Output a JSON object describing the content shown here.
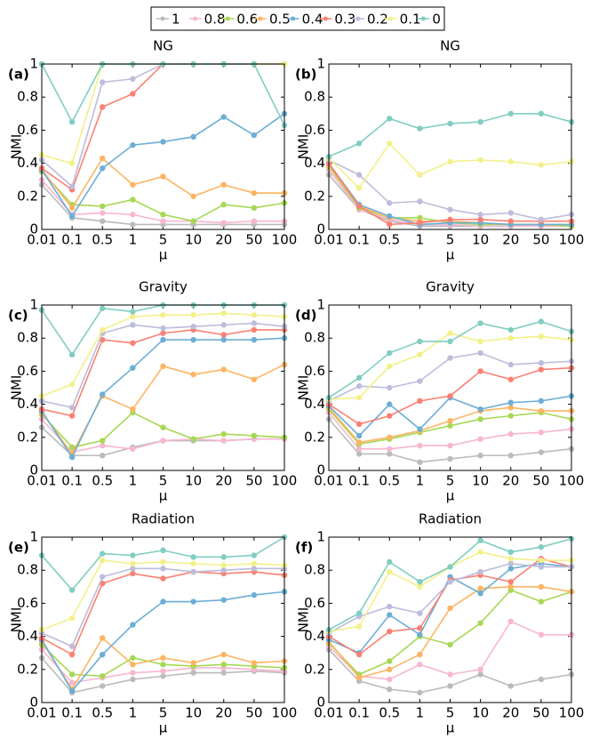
{
  "chart_data": [
    {
      "type": "line",
      "title": "NG",
      "panel_label": "(a)",
      "x_label": "μ",
      "y_label": "NMI",
      "categories": [
        "0.01",
        "0.1",
        "0.5",
        "1",
        "5",
        "10",
        "20",
        "50",
        "100"
      ],
      "ylim": [
        0,
        1
      ],
      "yticks": [
        0,
        0.2,
        0.4,
        0.6,
        0.8,
        1
      ],
      "series": [
        {
          "name": "1",
          "color": "#bbbbbb",
          "values": [
            0.27,
            0.07,
            0.05,
            0.03,
            0.03,
            0.03,
            0.03,
            0.03,
            0.03
          ]
        },
        {
          "name": "0.8",
          "color": "#f7b6d2",
          "values": [
            0.3,
            0.09,
            0.1,
            0.09,
            0.05,
            0.05,
            0.04,
            0.05,
            0.05
          ]
        },
        {
          "name": "0.6",
          "color": "#a6d854",
          "values": [
            0.35,
            0.15,
            0.14,
            0.18,
            0.09,
            0.05,
            0.15,
            0.13,
            0.16
          ]
        },
        {
          "name": "0.5",
          "color": "#fdb462",
          "values": [
            0.36,
            0.13,
            0.43,
            0.27,
            0.32,
            0.2,
            0.27,
            0.22,
            0.22
          ]
        },
        {
          "name": "0.4",
          "color": "#6baed6",
          "values": [
            0.36,
            0.08,
            0.37,
            0.51,
            0.53,
            0.56,
            0.68,
            0.57,
            0.7
          ]
        },
        {
          "name": "0.3",
          "color": "#fb8072",
          "values": [
            0.37,
            0.24,
            0.74,
            0.82,
            1,
            1,
            1,
            1,
            1
          ]
        },
        {
          "name": "0.2",
          "color": "#bcbddc",
          "values": [
            0.42,
            0.26,
            0.89,
            0.91,
            1,
            1,
            1,
            1,
            1
          ]
        },
        {
          "name": "0.1",
          "color": "#f3f08a",
          "values": [
            0.45,
            0.4,
            1,
            1,
            1,
            1,
            1,
            1,
            1
          ]
        },
        {
          "name": "0",
          "color": "#80cdc1",
          "values": [
            1,
            0.65,
            1,
            1,
            1,
            1,
            1,
            1,
            0.63
          ]
        }
      ]
    },
    {
      "type": "line",
      "title": "NG",
      "panel_label": "(b)",
      "x_label": "μ",
      "y_label": "NMI",
      "categories": [
        "0.01",
        "0.1",
        "0.5",
        "1",
        "5",
        "10",
        "20",
        "50",
        "100"
      ],
      "ylim": [
        0,
        1
      ],
      "yticks": [
        0,
        0.2,
        0.4,
        0.6,
        0.8,
        1
      ],
      "series": [
        {
          "name": "1",
          "color": "#bbbbbb",
          "values": [
            0.33,
            0.12,
            0.05,
            0.02,
            0.02,
            0.02,
            0.02,
            0.02,
            0.02
          ]
        },
        {
          "name": "0.8",
          "color": "#f7b6d2",
          "values": [
            0.36,
            0.12,
            0.06,
            0.03,
            0.03,
            0.02,
            0.02,
            0.02,
            0.02
          ]
        },
        {
          "name": "0.6",
          "color": "#a6d854",
          "values": [
            0.38,
            0.13,
            0.07,
            0.07,
            0.04,
            0.03,
            0.03,
            0.03,
            0.02
          ]
        },
        {
          "name": "0.5",
          "color": "#fdb462",
          "values": [
            0.39,
            0.14,
            0.07,
            0.05,
            0.05,
            0.04,
            0.03,
            0.03,
            0.03
          ]
        },
        {
          "name": "0.4",
          "color": "#6baed6",
          "values": [
            0.4,
            0.15,
            0.08,
            0.03,
            0.04,
            0.04,
            0.03,
            0.03,
            0.03
          ]
        },
        {
          "name": "0.3",
          "color": "#fb8072",
          "values": [
            0.4,
            0.14,
            0.03,
            0.04,
            0.06,
            0.06,
            0.05,
            0.05,
            0.05
          ]
        },
        {
          "name": "0.2",
          "color": "#bcbddc",
          "values": [
            0.42,
            0.33,
            0.16,
            0.17,
            0.12,
            0.09,
            0.1,
            0.06,
            0.09
          ]
        },
        {
          "name": "0.1",
          "color": "#f3f08a",
          "values": [
            0.43,
            0.25,
            0.52,
            0.33,
            0.41,
            0.42,
            0.41,
            0.39,
            0.41
          ]
        },
        {
          "name": "0",
          "color": "#80cdc1",
          "values": [
            0.44,
            0.52,
            0.67,
            0.61,
            0.64,
            0.65,
            0.7,
            0.7,
            0.65
          ]
        }
      ]
    },
    {
      "type": "line",
      "title": "Gravity",
      "panel_label": "(c)",
      "x_label": "μ",
      "y_label": "NMI",
      "categories": [
        "0.01",
        "0.1",
        "0.5",
        "1",
        "5",
        "10",
        "20",
        "50",
        "100"
      ],
      "ylim": [
        0,
        1
      ],
      "yticks": [
        0,
        0.2,
        0.4,
        0.6,
        0.8,
        1
      ],
      "series": [
        {
          "name": "1",
          "color": "#bbbbbb",
          "values": [
            0.26,
            0.09,
            0.09,
            0.14,
            0.18,
            0.18,
            0.18,
            0.19,
            0.19
          ]
        },
        {
          "name": "0.8",
          "color": "#f7b6d2",
          "values": [
            0.31,
            0.11,
            0.15,
            0.13,
            0.18,
            0.19,
            0.18,
            0.19,
            0.19
          ]
        },
        {
          "name": "0.6",
          "color": "#a6d854",
          "values": [
            0.34,
            0.14,
            0.18,
            0.35,
            0.26,
            0.19,
            0.22,
            0.21,
            0.2
          ]
        },
        {
          "name": "0.5",
          "color": "#fdb462",
          "values": [
            0.35,
            0.1,
            0.45,
            0.37,
            0.63,
            0.58,
            0.61,
            0.55,
            0.64
          ]
        },
        {
          "name": "0.4",
          "color": "#6baed6",
          "values": [
            0.36,
            0.08,
            0.46,
            0.62,
            0.79,
            0.79,
            0.79,
            0.79,
            0.8
          ]
        },
        {
          "name": "0.3",
          "color": "#fb8072",
          "values": [
            0.37,
            0.33,
            0.79,
            0.77,
            0.83,
            0.85,
            0.82,
            0.85,
            0.85
          ]
        },
        {
          "name": "0.2",
          "color": "#bcbddc",
          "values": [
            0.42,
            0.38,
            0.83,
            0.88,
            0.86,
            0.87,
            0.88,
            0.89,
            0.87
          ]
        },
        {
          "name": "0.1",
          "color": "#f3f08a",
          "values": [
            0.45,
            0.52,
            0.85,
            0.93,
            0.94,
            0.94,
            0.95,
            0.94,
            0.93
          ]
        },
        {
          "name": "0",
          "color": "#80cdc1",
          "values": [
            0.97,
            0.7,
            0.98,
            0.96,
            1,
            1,
            1,
            1,
            1
          ]
        }
      ]
    },
    {
      "type": "line",
      "title": "Gravity",
      "panel_label": "(d)",
      "x_label": "μ",
      "y_label": "NMI",
      "categories": [
        "0.01",
        "0.1",
        "0.5",
        "1",
        "5",
        "10",
        "20",
        "50",
        "100"
      ],
      "ylim": [
        0,
        1
      ],
      "yticks": [
        0,
        0.2,
        0.4,
        0.6,
        0.8,
        1
      ],
      "series": [
        {
          "name": "1",
          "color": "#bbbbbb",
          "values": [
            0.31,
            0.1,
            0.1,
            0.05,
            0.07,
            0.09,
            0.09,
            0.11,
            0.13
          ]
        },
        {
          "name": "0.8",
          "color": "#f7b6d2",
          "values": [
            0.35,
            0.13,
            0.13,
            0.15,
            0.15,
            0.19,
            0.22,
            0.23,
            0.25
          ]
        },
        {
          "name": "0.6",
          "color": "#a6d854",
          "values": [
            0.37,
            0.16,
            0.19,
            0.23,
            0.27,
            0.31,
            0.33,
            0.35,
            0.31
          ]
        },
        {
          "name": "0.5",
          "color": "#fdb462",
          "values": [
            0.38,
            0.17,
            0.2,
            0.24,
            0.3,
            0.36,
            0.38,
            0.36,
            0.36
          ]
        },
        {
          "name": "0.4",
          "color": "#6baed6",
          "values": [
            0.39,
            0.21,
            0.4,
            0.25,
            0.44,
            0.37,
            0.41,
            0.42,
            0.45
          ]
        },
        {
          "name": "0.3",
          "color": "#fb8072",
          "values": [
            0.4,
            0.28,
            0.33,
            0.42,
            0.45,
            0.6,
            0.55,
            0.61,
            0.62
          ]
        },
        {
          "name": "0.2",
          "color": "#bcbddc",
          "values": [
            0.42,
            0.51,
            0.5,
            0.54,
            0.68,
            0.71,
            0.64,
            0.65,
            0.66
          ]
        },
        {
          "name": "0.1",
          "color": "#f3f08a",
          "values": [
            0.43,
            0.44,
            0.63,
            0.7,
            0.83,
            0.78,
            0.8,
            0.81,
            0.79
          ]
        },
        {
          "name": "0",
          "color": "#80cdc1",
          "values": [
            0.44,
            0.56,
            0.71,
            0.78,
            0.78,
            0.89,
            0.85,
            0.9,
            0.84
          ]
        }
      ]
    },
    {
      "type": "line",
      "title": "Radiation",
      "panel_label": "(e)",
      "x_label": "μ",
      "y_label": "NMI",
      "categories": [
        "0.01",
        "0.1",
        "0.5",
        "1",
        "5",
        "10",
        "20",
        "50",
        "100"
      ],
      "ylim": [
        0,
        1
      ],
      "yticks": [
        0,
        0.2,
        0.4,
        0.6,
        0.8,
        1
      ],
      "series": [
        {
          "name": "1",
          "color": "#bbbbbb",
          "values": [
            0.27,
            0.06,
            0.1,
            0.14,
            0.16,
            0.18,
            0.18,
            0.19,
            0.18
          ]
        },
        {
          "name": "0.8",
          "color": "#f7b6d2",
          "values": [
            0.32,
            0.12,
            0.15,
            0.18,
            0.19,
            0.21,
            0.21,
            0.2,
            0.19
          ]
        },
        {
          "name": "0.6",
          "color": "#a6d854",
          "values": [
            0.35,
            0.17,
            0.16,
            0.27,
            0.23,
            0.22,
            0.23,
            0.22,
            0.21
          ]
        },
        {
          "name": "0.5",
          "color": "#fdb462",
          "values": [
            0.37,
            0.08,
            0.39,
            0.23,
            0.27,
            0.24,
            0.29,
            0.24,
            0.25
          ]
        },
        {
          "name": "0.4",
          "color": "#6baed6",
          "values": [
            0.38,
            0.07,
            0.29,
            0.47,
            0.61,
            0.61,
            0.62,
            0.65,
            0.67
          ]
        },
        {
          "name": "0.3",
          "color": "#fb8072",
          "values": [
            0.39,
            0.29,
            0.72,
            0.78,
            0.75,
            0.79,
            0.78,
            0.79,
            0.77
          ]
        },
        {
          "name": "0.2",
          "color": "#bcbddc",
          "values": [
            0.42,
            0.34,
            0.76,
            0.81,
            0.81,
            0.79,
            0.8,
            0.81,
            0.81
          ]
        },
        {
          "name": "0.1",
          "color": "#f3f08a",
          "values": [
            0.44,
            0.51,
            0.86,
            0.84,
            0.85,
            0.84,
            0.83,
            0.84,
            0.83
          ]
        },
        {
          "name": "0",
          "color": "#80cdc1",
          "values": [
            0.89,
            0.68,
            0.9,
            0.89,
            0.92,
            0.88,
            0.88,
            0.89,
            1
          ]
        }
      ]
    },
    {
      "type": "line",
      "title": "Radiation",
      "panel_label": "(f)",
      "x_label": "μ",
      "y_label": "NMI",
      "categories": [
        "0.01",
        "0.1",
        "0.5",
        "1",
        "5",
        "10",
        "20",
        "50",
        "100"
      ],
      "ylim": [
        0,
        1
      ],
      "yticks": [
        0,
        0.2,
        0.4,
        0.6,
        0.8,
        1
      ],
      "series": [
        {
          "name": "1",
          "color": "#bbbbbb",
          "values": [
            0.32,
            0.13,
            0.08,
            0.06,
            0.1,
            0.17,
            0.1,
            0.14,
            0.17
          ]
        },
        {
          "name": "0.8",
          "color": "#f7b6d2",
          "values": [
            0.34,
            0.16,
            0.14,
            0.23,
            0.17,
            0.2,
            0.49,
            0.41,
            0.41
          ]
        },
        {
          "name": "0.6",
          "color": "#a6d854",
          "values": [
            0.36,
            0.17,
            0.25,
            0.4,
            0.35,
            0.48,
            0.68,
            0.61,
            0.67
          ]
        },
        {
          "name": "0.5",
          "color": "#fdb462",
          "values": [
            0.37,
            0.15,
            0.2,
            0.29,
            0.57,
            0.69,
            0.7,
            0.7,
            0.67
          ]
        },
        {
          "name": "0.4",
          "color": "#6baed6",
          "values": [
            0.38,
            0.3,
            0.53,
            0.41,
            0.76,
            0.66,
            0.81,
            0.84,
            0.82
          ]
        },
        {
          "name": "0.3",
          "color": "#fb8072",
          "values": [
            0.4,
            0.29,
            0.43,
            0.45,
            0.74,
            0.77,
            0.73,
            0.87,
            0.82
          ]
        },
        {
          "name": "0.2",
          "color": "#bcbddc",
          "values": [
            0.42,
            0.52,
            0.58,
            0.54,
            0.73,
            0.79,
            0.84,
            0.82,
            0.82
          ]
        },
        {
          "name": "0.1",
          "color": "#f3f08a",
          "values": [
            0.43,
            0.46,
            0.79,
            0.7,
            0.82,
            0.91,
            0.87,
            0.86,
            0.86
          ]
        },
        {
          "name": "0",
          "color": "#80cdc1",
          "values": [
            0.44,
            0.54,
            0.85,
            0.73,
            0.82,
            0.98,
            0.91,
            0.94,
            0.99
          ]
        }
      ]
    }
  ]
}
